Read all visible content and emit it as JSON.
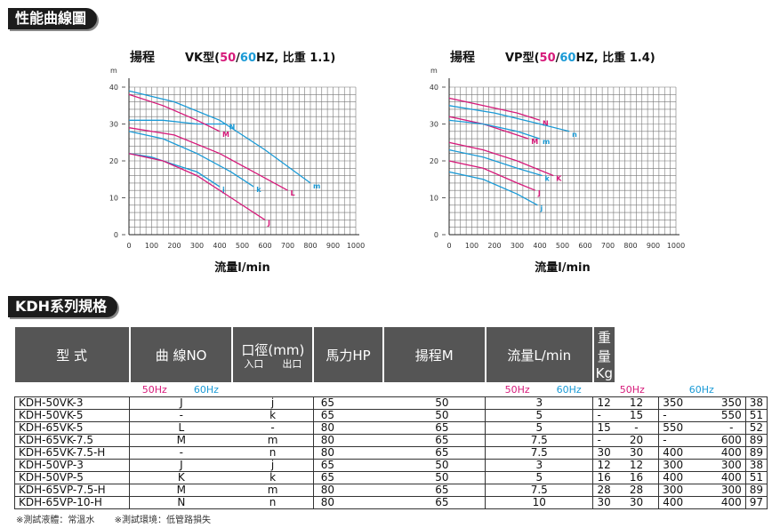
{
  "section1_title": "性能曲線圖",
  "section2_title": "KDH系列規格",
  "chart_data": [
    {
      "type": "line",
      "ylabel": "揚程",
      "y_unit": "m",
      "title_model": "VK型(",
      "title_50": "50",
      "title_sep": "/",
      "title_60": "60",
      "title_rest": "HZ, 比重 1.1)",
      "xlabel": "流量l/min",
      "xlim": [
        0,
        1000
      ],
      "ylim": [
        0,
        40
      ],
      "x_ticks": [
        "0",
        "100",
        "200",
        "300",
        "400",
        "500",
        "600",
        "700",
        "800",
        "900",
        "1000"
      ],
      "y_ticks": [
        "0",
        "10",
        "20",
        "30",
        "40"
      ],
      "series": [
        {
          "name": "N",
          "hz": 60,
          "label_color": "#1a9ad6",
          "x": [
            0,
            150,
            300,
            430
          ],
          "y": [
            31,
            31,
            30,
            30
          ]
        },
        {
          "name": "M",
          "hz": 50,
          "label_color": "#d61a7a",
          "x": [
            0,
            150,
            300,
            400
          ],
          "y": [
            38,
            35,
            31,
            28
          ]
        },
        {
          "name": "m",
          "hz": 60,
          "label_color": "#1a9ad6",
          "x": [
            0,
            200,
            400,
            600,
            800
          ],
          "y": [
            39,
            36,
            31,
            23,
            14
          ]
        },
        {
          "name": "k",
          "hz": 60,
          "label_color": "#1a9ad6",
          "x": [
            0,
            150,
            300,
            450,
            550
          ],
          "y": [
            28,
            26,
            22,
            17,
            13
          ]
        },
        {
          "name": "L",
          "hz": 50,
          "label_color": "#d61a7a",
          "x": [
            0,
            200,
            400,
            550,
            700
          ],
          "y": [
            29,
            27,
            22,
            17,
            12
          ]
        },
        {
          "name": "j",
          "hz": 60,
          "label_color": "#1a9ad6",
          "x": [
            0,
            100,
            200,
            300,
            400
          ],
          "y": [
            22,
            21,
            19,
            17,
            13
          ]
        },
        {
          "name": "J",
          "hz": 50,
          "label_color": "#d61a7a",
          "x": [
            0,
            150,
            300,
            450,
            600
          ],
          "y": [
            22,
            20,
            16,
            10,
            4
          ]
        }
      ]
    },
    {
      "type": "line",
      "ylabel": "揚程",
      "y_unit": "m",
      "title_model": "VP型(",
      "title_50": "50",
      "title_sep": "/",
      "title_60": "60",
      "title_rest": "HZ, 比重 1.4)",
      "xlabel": "流量l/min",
      "xlim": [
        0,
        1000
      ],
      "ylim": [
        0,
        40
      ],
      "x_ticks": [
        "0",
        "100",
        "200",
        "300",
        "400",
        "500",
        "600",
        "700",
        "800",
        "900",
        "1000"
      ],
      "y_ticks": [
        "0",
        "10",
        "20",
        "30",
        "40"
      ],
      "series": [
        {
          "name": "N",
          "hz": 50,
          "label_color": "#d61a7a",
          "x": [
            0,
            150,
            300,
            400
          ],
          "y": [
            37,
            35,
            33,
            31
          ]
        },
        {
          "name": "n",
          "hz": 60,
          "label_color": "#1a9ad6",
          "x": [
            0,
            200,
            400,
            530
          ],
          "y": [
            35,
            33,
            30,
            28
          ]
        },
        {
          "name": "M",
          "hz": 50,
          "label_color": "#d61a7a",
          "x": [
            0,
            150,
            250,
            350
          ],
          "y": [
            32,
            30,
            28,
            26
          ]
        },
        {
          "name": "m",
          "hz": 60,
          "label_color": "#1a9ad6",
          "x": [
            0,
            150,
            300,
            400
          ],
          "y": [
            31,
            30,
            28,
            26
          ]
        },
        {
          "name": "K",
          "hz": 50,
          "label_color": "#d61a7a",
          "x": [
            0,
            150,
            300,
            460
          ],
          "y": [
            25,
            23,
            20,
            16
          ]
        },
        {
          "name": "k",
          "hz": 60,
          "label_color": "#1a9ad6",
          "x": [
            0,
            150,
            300,
            410
          ],
          "y": [
            23,
            21,
            18,
            16
          ]
        },
        {
          "name": "J",
          "hz": 50,
          "label_color": "#d61a7a",
          "x": [
            0,
            150,
            300,
            380
          ],
          "y": [
            20,
            18,
            14,
            12
          ]
        },
        {
          "name": "j",
          "hz": 60,
          "label_color": "#1a9ad6",
          "x": [
            0,
            150,
            300,
            390
          ],
          "y": [
            17,
            15,
            11,
            8
          ]
        }
      ]
    }
  ],
  "table": {
    "headers": {
      "model": "型 式",
      "curve": "曲 線NO",
      "port": "口徑(mm)",
      "port_in": "入口",
      "port_out": "出口",
      "hp": "馬力HP",
      "head": "揚程M",
      "flow": "流量L/min",
      "weight": "重量Kg"
    },
    "hz": {
      "c50": "50Hz",
      "c60": "60Hz",
      "h50": "50Hz",
      "h60": "60Hz",
      "f50": "50Hz",
      "f60": "60Hz"
    },
    "rows": [
      [
        "KDH-50VK-3",
        "J",
        "j",
        "65",
        "50",
        "3",
        "12",
        "12",
        "350",
        "350",
        "38"
      ],
      [
        "KDH-50VK-5",
        "-",
        "k",
        "65",
        "50",
        "5",
        "-",
        "15",
        "-",
        "550",
        "51"
      ],
      [
        "KDH-65VK-5",
        "L",
        "-",
        "80",
        "65",
        "5",
        "15",
        "-",
        "550",
        "-",
        "52"
      ],
      [
        "KDH-65VK-7.5",
        "M",
        "m",
        "80",
        "65",
        "7.5",
        "-",
        "20",
        "-",
        "600",
        "89"
      ],
      [
        "KDH-65VK-7.5-H",
        "-",
        "n",
        "80",
        "65",
        "7.5",
        "30",
        "30",
        "400",
        "400",
        "89"
      ],
      [
        "KDH-50VP-3",
        "J",
        "j",
        "65",
        "50",
        "3",
        "12",
        "12",
        "300",
        "300",
        "38"
      ],
      [
        "KDH-50VP-5",
        "K",
        "k",
        "65",
        "50",
        "5",
        "16",
        "16",
        "400",
        "400",
        "51"
      ],
      [
        "KDH-65VP-7.5-H",
        "M",
        "m",
        "80",
        "65",
        "7.5",
        "28",
        "28",
        "300",
        "300",
        "89"
      ],
      [
        "KDH-65VP-10-H",
        "N",
        "n",
        "80",
        "65",
        "10",
        "30",
        "30",
        "400",
        "400",
        "97"
      ]
    ]
  },
  "notes": [
    "※測試液體：常溫水",
    "※測試環境：低管路損失"
  ],
  "colors": {
    "c50": "#d61a7a",
    "c60": "#1a9ad6",
    "header_bg": "#555555"
  }
}
